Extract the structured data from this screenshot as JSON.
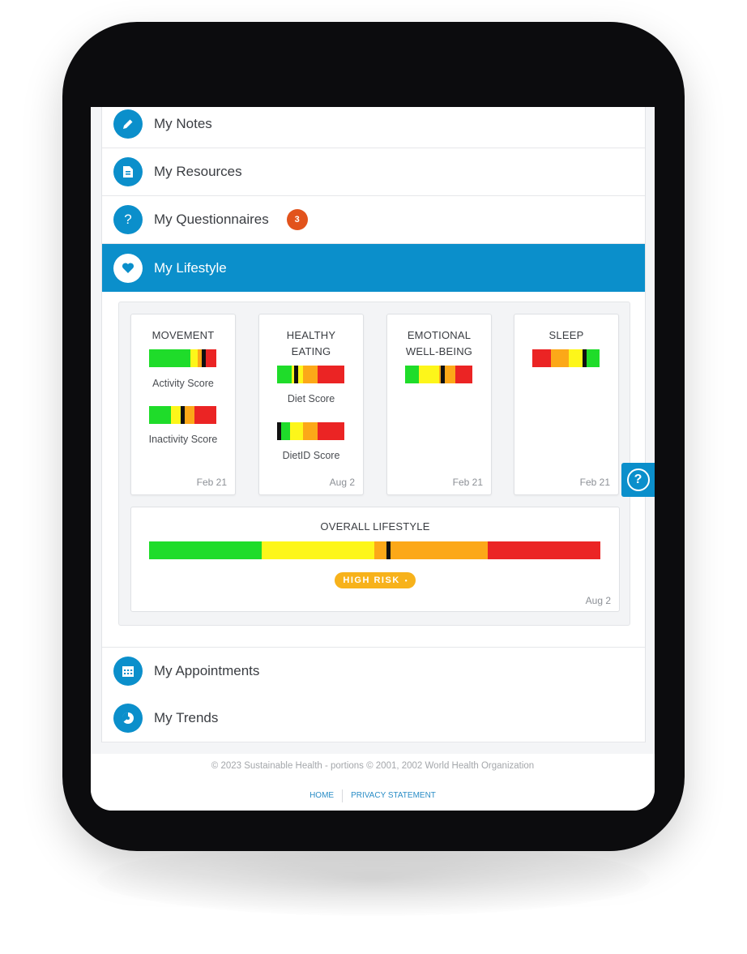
{
  "menu": {
    "notes": {
      "label": "My Notes",
      "icon": "pencil-icon"
    },
    "resources": {
      "label": "My Resources",
      "icon": "document-icon"
    },
    "questionnaires": {
      "label": "My Questionnaires",
      "icon": "question-icon",
      "badge": "3"
    },
    "lifestyle": {
      "label": "My Lifestyle",
      "icon": "heart-icon"
    },
    "appointments": {
      "label": "My Appointments",
      "icon": "calendar-icon"
    },
    "trends": {
      "label": "My Trends",
      "icon": "pie-chart-icon"
    }
  },
  "lifestyle": {
    "movement": {
      "title_line1": "MOVEMENT",
      "scores": [
        "Activity Score",
        "Inactivity Score"
      ],
      "date": "Feb 21"
    },
    "eating": {
      "title_line1": "HEALTHY",
      "title_line2": "EATING",
      "scores": [
        "Diet Score",
        "DietID Score"
      ],
      "date": "Aug 2"
    },
    "emotional": {
      "title_line1": "EMOTIONAL",
      "title_line2": "WELL-BEING",
      "date": "Feb 21"
    },
    "sleep": {
      "title_line1": "SLEEP",
      "date": "Feb 21"
    },
    "overall": {
      "title": "OVERALL LIFESTYLE",
      "risk_label": "HIGH RISK",
      "date": "Aug 2"
    },
    "colors": {
      "green": "#1fdc2a",
      "yellow": "#fdf61a",
      "orange": "#fca818",
      "red": "#eb2424",
      "marker": "#111111"
    }
  },
  "footer": {
    "copyright": "© 2023 Sustainable Health  -  portions © 2001, 2002 World Health Organization",
    "home": "HOME",
    "privacy": "PRIVACY STATEMENT"
  },
  "help": {
    "icon": "help-icon",
    "symbol": "?"
  }
}
